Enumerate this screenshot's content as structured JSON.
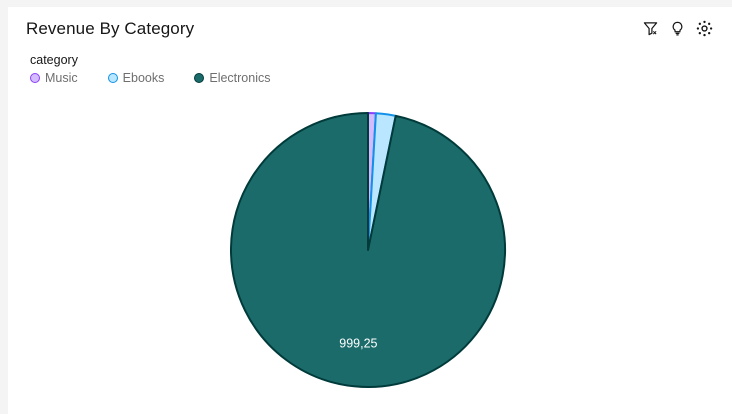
{
  "header": {
    "title": "Revenue By Category",
    "tools": [
      {
        "name": "filter-icon"
      },
      {
        "name": "lightbulb-icon"
      },
      {
        "name": "settings-icon"
      }
    ]
  },
  "chart_data": {
    "type": "pie",
    "legend_title": "category",
    "legend_position": "top-left",
    "slices": [
      {
        "label": "Music",
        "value": 9.5,
        "color": "#d4bbff",
        "stroke": "#8a3ffc",
        "data_label": ""
      },
      {
        "label": "Ebooks",
        "value": 24,
        "color": "#bae6ff",
        "stroke": "#1192e8",
        "data_label": ""
      },
      {
        "label": "Electronics",
        "value": 999.25,
        "color": "#1b6b6b",
        "stroke": "#003a3a",
        "data_label": "999,25"
      }
    ]
  }
}
